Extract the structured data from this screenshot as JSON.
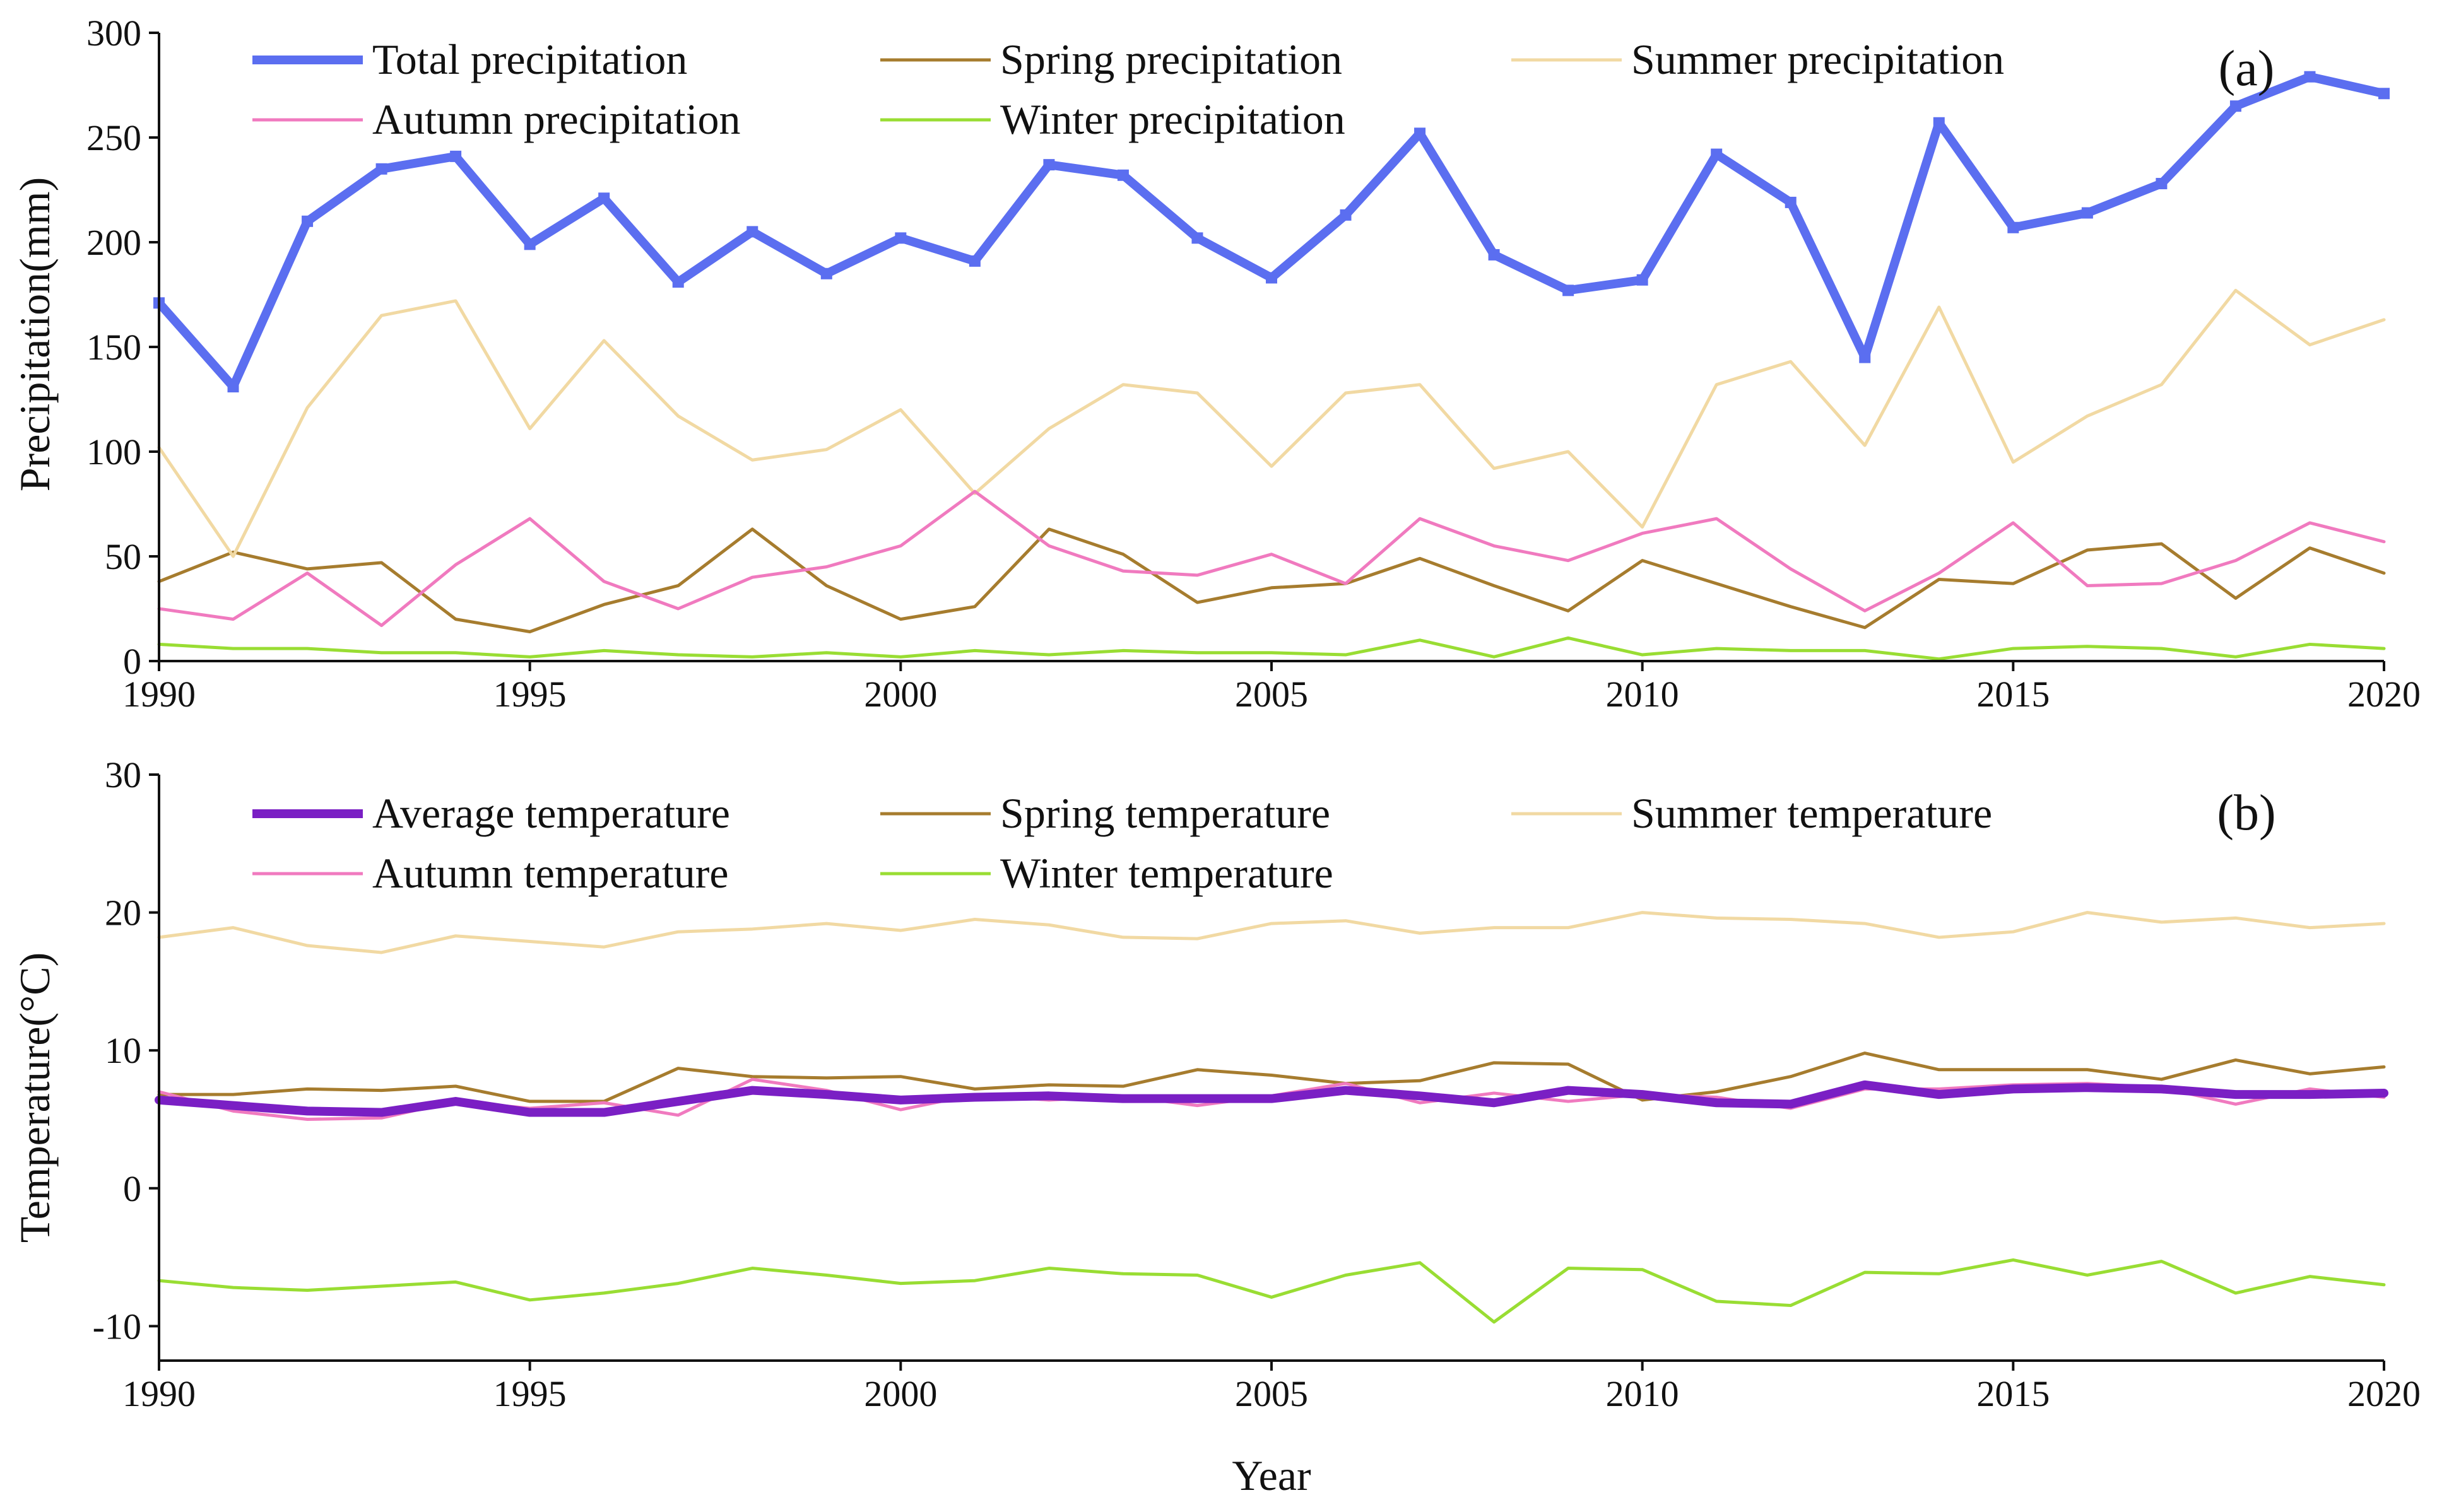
{
  "chart_data": [
    {
      "type": "line",
      "panel_label": "(a)",
      "xlabel": "",
      "ylabel": "Precipitation(mm)",
      "xlim": [
        1990,
        2020
      ],
      "ylim": [
        0,
        300
      ],
      "x_ticks": [
        1990,
        1995,
        2000,
        2005,
        2010,
        2015,
        2020
      ],
      "y_ticks": [
        0,
        50,
        100,
        150,
        200,
        250,
        300
      ],
      "grid": false,
      "legend_position": "top",
      "x": [
        1990,
        1991,
        1992,
        1993,
        1994,
        1995,
        1996,
        1997,
        1998,
        1999,
        2000,
        2001,
        2002,
        2003,
        2004,
        2005,
        2006,
        2007,
        2008,
        2009,
        2010,
        2011,
        2012,
        2013,
        2014,
        2015,
        2016,
        2017,
        2018,
        2019,
        2020
      ],
      "series": [
        {
          "name": "Total precipitation",
          "color": "#5b6ef0",
          "width": "thick",
          "markers": true,
          "values": [
            171,
            131,
            210,
            235,
            241,
            199,
            221,
            181,
            205,
            185,
            202,
            191,
            237,
            232,
            202,
            183,
            213,
            252,
            194,
            177,
            182,
            242,
            219,
            145,
            257,
            207,
            214,
            228,
            265,
            279,
            271
          ]
        },
        {
          "name": "Spring precipitation",
          "color": "#a67c2e",
          "width": "thin",
          "markers": false,
          "values": [
            38,
            52,
            44,
            47,
            20,
            14,
            27,
            36,
            63,
            36,
            20,
            26,
            63,
            51,
            28,
            35,
            37,
            49,
            36,
            24,
            48,
            37,
            26,
            16,
            39,
            37,
            53,
            56,
            30,
            54,
            42
          ]
        },
        {
          "name": "Summer precipitation",
          "color": "#f1d9a3",
          "width": "thin",
          "markers": false,
          "values": [
            102,
            50,
            121,
            165,
            172,
            111,
            153,
            117,
            96,
            101,
            120,
            80,
            111,
            132,
            128,
            93,
            128,
            132,
            92,
            100,
            64,
            132,
            143,
            103,
            169,
            95,
            117,
            132,
            177,
            151,
            163
          ]
        },
        {
          "name": "Autumn precipitation",
          "color": "#f07abf",
          "width": "thin",
          "markers": false,
          "values": [
            25,
            20,
            42,
            17,
            46,
            68,
            38,
            25,
            40,
            45,
            55,
            81,
            55,
            43,
            41,
            51,
            37,
            68,
            55,
            48,
            61,
            68,
            44,
            24,
            42,
            66,
            36,
            37,
            48,
            66,
            57
          ]
        },
        {
          "name": "Winter precipitation",
          "color": "#99dd33",
          "width": "thin",
          "markers": false,
          "values": [
            8,
            6,
            6,
            4,
            4,
            2,
            5,
            3,
            2,
            4,
            2,
            5,
            3,
            5,
            4,
            4,
            3,
            10,
            2,
            11,
            3,
            6,
            5,
            5,
            1,
            6,
            7,
            6,
            2,
            8,
            6
          ]
        }
      ]
    },
    {
      "type": "line",
      "panel_label": "(b)",
      "xlabel": "Year",
      "ylabel": "Temperature(°C)",
      "xlim": [
        1990,
        2020
      ],
      "ylim": [
        -12.5,
        30
      ],
      "x_ticks": [
        1990,
        1995,
        2000,
        2005,
        2010,
        2015,
        2020
      ],
      "y_ticks": [
        -10,
        0,
        10,
        20,
        30
      ],
      "grid": false,
      "legend_position": "top",
      "x": [
        1990,
        1991,
        1992,
        1993,
        1994,
        1995,
        1996,
        1997,
        1998,
        1999,
        2000,
        2001,
        2002,
        2003,
        2004,
        2005,
        2006,
        2007,
        2008,
        2009,
        2010,
        2011,
        2012,
        2013,
        2014,
        2015,
        2016,
        2017,
        2018,
        2019,
        2020
      ],
      "series": [
        {
          "name": "Average temperature",
          "color": "#7a1fc4",
          "width": "thick",
          "markers": false,
          "values": [
            6.4,
            6.0,
            5.6,
            5.5,
            6.3,
            5.5,
            5.5,
            6.3,
            7.1,
            6.8,
            6.4,
            6.6,
            6.7,
            6.5,
            6.5,
            6.5,
            7.1,
            6.7,
            6.2,
            7.1,
            6.8,
            6.2,
            6.1,
            7.5,
            6.8,
            7.2,
            7.3,
            7.2,
            6.8,
            6.8,
            6.9
          ]
        },
        {
          "name": "Spring temperature",
          "color": "#a67c2e",
          "width": "thin",
          "markers": false,
          "values": [
            6.8,
            6.8,
            7.2,
            7.1,
            7.4,
            6.3,
            6.3,
            8.7,
            8.1,
            8.0,
            8.1,
            7.2,
            7.5,
            7.4,
            8.6,
            8.2,
            7.6,
            7.8,
            9.1,
            9.0,
            6.4,
            7.0,
            8.1,
            9.8,
            8.6,
            8.6,
            8.6,
            7.9,
            9.3,
            8.3,
            8.8
          ]
        },
        {
          "name": "Summer  temperature",
          "color": "#f1d9a3",
          "width": "thin",
          "markers": false,
          "values": [
            18.2,
            18.9,
            17.6,
            17.1,
            18.3,
            17.9,
            17.5,
            18.6,
            18.8,
            19.2,
            18.7,
            19.5,
            19.1,
            18.2,
            18.1,
            19.2,
            19.4,
            18.5,
            18.9,
            18.9,
            20.0,
            19.6,
            19.5,
            19.2,
            18.2,
            18.6,
            20.0,
            19.3,
            19.6,
            18.9,
            19.2
          ]
        },
        {
          "name": "Autumn temperature",
          "color": "#f07abf",
          "width": "thin",
          "markers": false,
          "values": [
            7.0,
            5.6,
            5.0,
            5.1,
            6.3,
            5.8,
            6.2,
            5.3,
            7.9,
            7.1,
            5.7,
            6.8,
            6.4,
            6.7,
            6.0,
            6.7,
            7.6,
            6.2,
            6.9,
            6.3,
            6.8,
            6.6,
            5.8,
            7.2,
            7.2,
            7.5,
            7.6,
            7.3,
            6.1,
            7.2,
            6.6
          ]
        },
        {
          "name": "Winter temperature",
          "color": "#99dd33",
          "width": "thin",
          "markers": false,
          "values": [
            -6.7,
            -7.2,
            -7.4,
            -7.1,
            -6.8,
            -8.1,
            -7.6,
            -6.9,
            -5.8,
            -6.3,
            -6.9,
            -6.7,
            -5.8,
            -6.2,
            -6.3,
            -7.9,
            -6.3,
            -5.4,
            -9.7,
            -5.8,
            -5.9,
            -8.2,
            -8.5,
            -6.1,
            -6.2,
            -5.2,
            -6.3,
            -5.3,
            -7.6,
            -6.4,
            -7.0
          ]
        }
      ]
    }
  ]
}
